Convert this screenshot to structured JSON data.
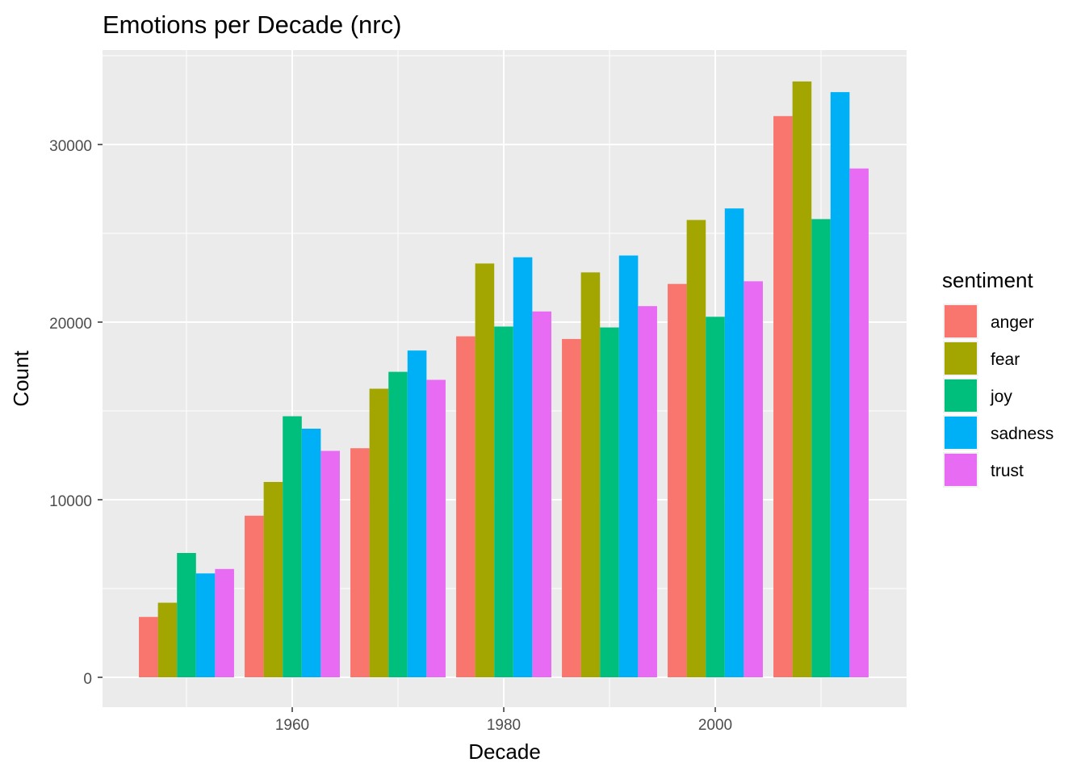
{
  "chart_data": {
    "type": "bar",
    "title": "Emotions per Decade (nrc)",
    "xlabel": "Decade",
    "ylabel": "Count",
    "categories": [
      1950,
      1960,
      1970,
      1980,
      1990,
      2000,
      2010
    ],
    "x_ticks": [
      "1960",
      "1980",
      "2000"
    ],
    "y_ticks": [
      "0",
      "10000",
      "20000",
      "30000"
    ],
    "ylim": [
      0,
      35000
    ],
    "grid": true,
    "legend": {
      "title": "sentiment",
      "position": "right"
    },
    "series": [
      {
        "name": "anger",
        "color": "#F8766D",
        "values": [
          3400,
          9100,
          12900,
          19200,
          19050,
          22150,
          31600
        ]
      },
      {
        "name": "fear",
        "color": "#A3A500",
        "values": [
          4200,
          11000,
          16250,
          23300,
          22800,
          25750,
          33550
        ]
      },
      {
        "name": "joy",
        "color": "#00BF7D",
        "values": [
          7000,
          14700,
          17200,
          19750,
          19700,
          20300,
          25800
        ]
      },
      {
        "name": "sadness",
        "color": "#00B0F6",
        "values": [
          5850,
          14000,
          18400,
          23650,
          23750,
          26400,
          32950
        ]
      },
      {
        "name": "trust",
        "color": "#E76BF3",
        "values": [
          6100,
          12750,
          16750,
          20600,
          20900,
          22300,
          28650
        ]
      }
    ]
  }
}
